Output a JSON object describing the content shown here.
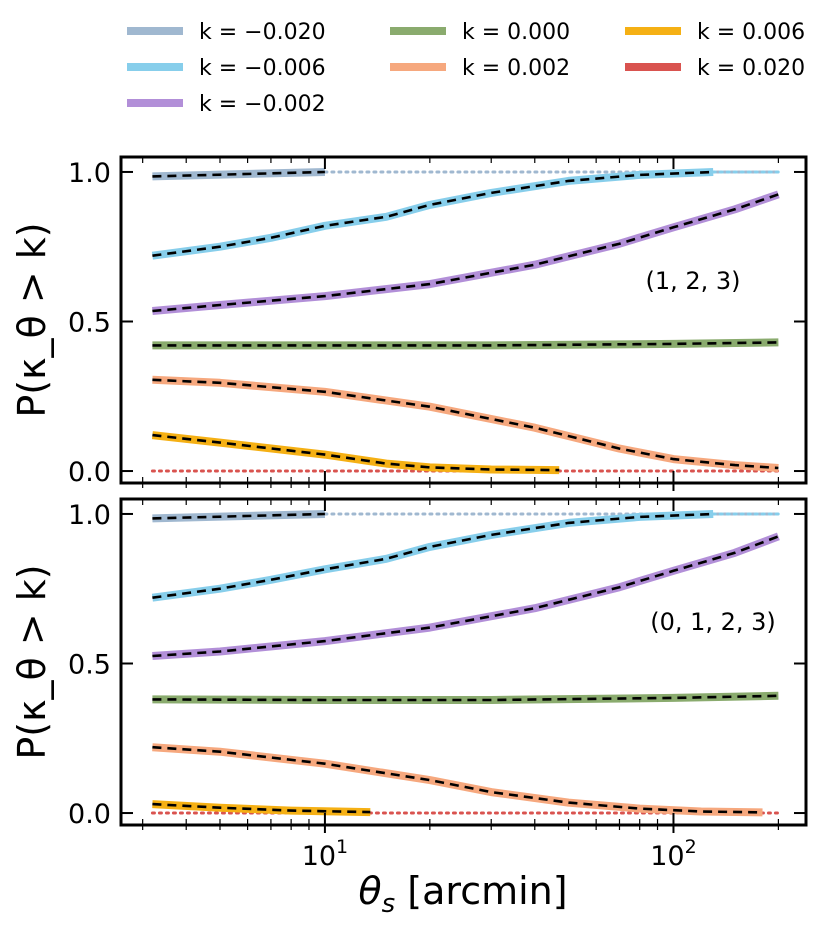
{
  "chart_data": [
    {
      "type": "line",
      "xlabel": "θ_s [arcmin]",
      "ylabel": "P(κ_θ > k)",
      "xscale": "log",
      "xlim": [
        2.6,
        240
      ],
      "ylim": [
        -0.04,
        1.05
      ],
      "xticks": [
        {
          "value": 10,
          "label": "10^1"
        },
        {
          "value": 100,
          "label": "10^2"
        }
      ],
      "yticks": [
        0.0,
        0.5,
        1.0
      ],
      "annotation": "(1, 2, 3)",
      "legend": "top (above panels), 3 columns",
      "series": [
        {
          "name": "k = −0.020",
          "color": "#a0b8d0",
          "solid_x": [
            3.2,
            10
          ],
          "solid_y": [
            0.985,
            1.0
          ],
          "dotted_to": 200
        },
        {
          "name": "k = −0.006",
          "color": "#87ceeb",
          "solid_x": [
            3.2,
            5,
            7,
            10,
            15,
            20,
            30,
            50,
            80,
            130
          ],
          "solid_y": [
            0.72,
            0.75,
            0.78,
            0.82,
            0.85,
            0.89,
            0.93,
            0.97,
            0.99,
            1.0
          ],
          "dotted_to": 200
        },
        {
          "name": "k = −0.002",
          "color": "#b28fd8",
          "solid_x": [
            3.2,
            5,
            10,
            20,
            40,
            70,
            100,
            150,
            200
          ],
          "solid_y": [
            0.535,
            0.555,
            0.585,
            0.625,
            0.69,
            0.76,
            0.815,
            0.875,
            0.925
          ],
          "dotted_to": null
        },
        {
          "name": "k = 0.000",
          "color": "#8aab6e",
          "solid_x": [
            3.2,
            10,
            30,
            100,
            200
          ],
          "solid_y": [
            0.42,
            0.42,
            0.42,
            0.425,
            0.43
          ],
          "dotted_to": null
        },
        {
          "name": "k = 0.002",
          "color": "#f6a87e",
          "solid_x": [
            3.2,
            5,
            10,
            20,
            40,
            70,
            100,
            150,
            200
          ],
          "solid_y": [
            0.305,
            0.295,
            0.265,
            0.215,
            0.145,
            0.075,
            0.04,
            0.02,
            0.01
          ],
          "dotted_to": null
        },
        {
          "name": "k = 0.006",
          "color": "#f5b014",
          "solid_x": [
            3.2,
            5,
            10,
            15,
            20,
            30,
            47
          ],
          "solid_y": [
            0.12,
            0.095,
            0.055,
            0.025,
            0.012,
            0.005,
            0.003
          ],
          "dotted_to": null
        },
        {
          "name": "k = 0.020",
          "color": "#d9534f",
          "solid_x": [],
          "solid_y": [],
          "dotted_from": 3.2,
          "dotted_to": 200,
          "dotted_y": 0.0
        }
      ]
    },
    {
      "type": "line",
      "xlabel": "θ_s [arcmin]",
      "ylabel": "P(κ_θ > k)",
      "xscale": "log",
      "xlim": [
        2.6,
        240
      ],
      "ylim": [
        -0.04,
        1.05
      ],
      "xticks": [
        {
          "value": 10,
          "label": "10^1"
        },
        {
          "value": 100,
          "label": "10^2"
        }
      ],
      "yticks": [
        0.0,
        0.5,
        1.0
      ],
      "annotation": "(0, 1, 2, 3)",
      "series": [
        {
          "name": "k = −0.020",
          "color": "#a0b8d0",
          "solid_x": [
            3.2,
            10
          ],
          "solid_y": [
            0.985,
            1.0
          ],
          "dotted_to": 200
        },
        {
          "name": "k = −0.006",
          "color": "#87ceeb",
          "solid_x": [
            3.2,
            5,
            7,
            10,
            15,
            20,
            30,
            50,
            80,
            130
          ],
          "solid_y": [
            0.72,
            0.75,
            0.78,
            0.815,
            0.85,
            0.89,
            0.93,
            0.97,
            0.99,
            1.0
          ],
          "dotted_to": 200
        },
        {
          "name": "k = −0.002",
          "color": "#b28fd8",
          "solid_x": [
            3.2,
            5,
            10,
            20,
            40,
            70,
            100,
            150,
            200
          ],
          "solid_y": [
            0.525,
            0.54,
            0.575,
            0.62,
            0.685,
            0.755,
            0.81,
            0.87,
            0.925
          ],
          "dotted_to": null
        },
        {
          "name": "k = 0.000",
          "color": "#8aab6e",
          "solid_x": [
            3.2,
            10,
            30,
            100,
            200
          ],
          "solid_y": [
            0.38,
            0.378,
            0.378,
            0.385,
            0.392
          ],
          "dotted_to": null
        },
        {
          "name": "k = 0.002",
          "color": "#f6a87e",
          "solid_x": [
            3.2,
            5,
            10,
            20,
            30,
            50,
            80,
            120,
            180
          ],
          "solid_y": [
            0.22,
            0.205,
            0.165,
            0.11,
            0.07,
            0.035,
            0.015,
            0.005,
            0.002
          ],
          "dotted_to": null
        },
        {
          "name": "k = 0.006",
          "color": "#f5b014",
          "solid_x": [
            3.2,
            5,
            8,
            13.5
          ],
          "solid_y": [
            0.03,
            0.018,
            0.008,
            0.003
          ],
          "dotted_to": null
        },
        {
          "name": "k = 0.020",
          "color": "#d9534f",
          "solid_x": [],
          "solid_y": [],
          "dotted_from": 3.2,
          "dotted_to": 200,
          "dotted_y": 0.0
        }
      ]
    }
  ]
}
